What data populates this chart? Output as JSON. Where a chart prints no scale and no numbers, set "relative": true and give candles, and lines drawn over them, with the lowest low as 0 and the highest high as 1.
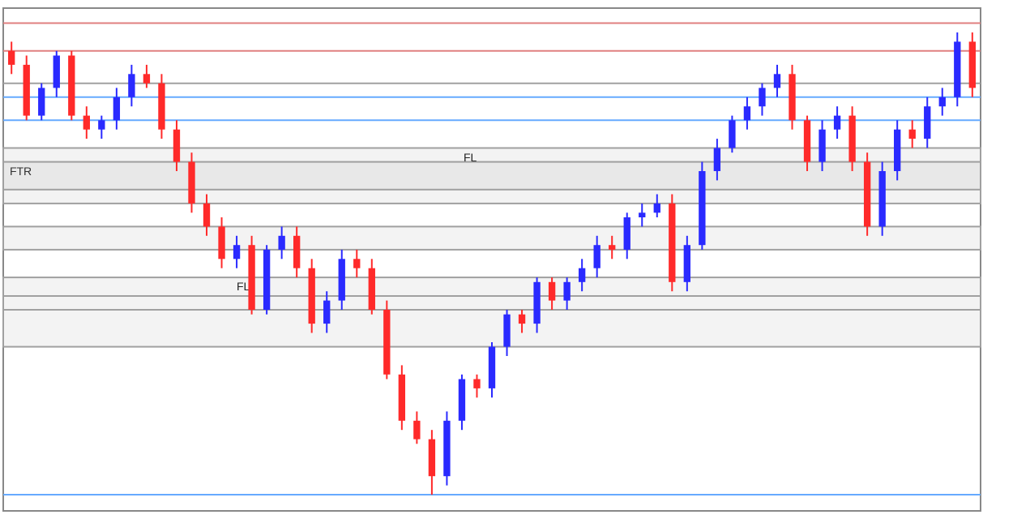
{
  "chart_data": {
    "type": "candlestick",
    "relative": true,
    "categories": [
      null,
      null,
      null,
      null,
      null,
      null,
      null,
      null,
      null,
      null,
      null,
      null,
      null,
      null,
      null,
      null,
      null,
      null,
      null,
      null,
      null,
      null,
      null,
      null,
      null,
      null,
      null,
      null,
      null,
      null,
      null,
      null,
      null,
      null,
      null,
      null,
      null,
      null,
      null,
      null,
      null,
      null,
      null,
      null,
      null,
      null,
      null,
      null,
      null,
      null,
      null,
      null,
      null,
      null,
      null,
      null,
      null,
      null,
      null,
      null,
      null,
      null,
      null,
      null,
      null
    ],
    "ohlc": [
      [
        0.96,
        0.98,
        0.91,
        0.93
      ],
      [
        0.93,
        0.95,
        0.81,
        0.82
      ],
      [
        0.82,
        0.89,
        0.81,
        0.88
      ],
      [
        0.88,
        0.96,
        0.86,
        0.95
      ],
      [
        0.95,
        0.96,
        0.81,
        0.82
      ],
      [
        0.82,
        0.84,
        0.77,
        0.79
      ],
      [
        0.79,
        0.82,
        0.77,
        0.81
      ],
      [
        0.81,
        0.88,
        0.79,
        0.86
      ],
      [
        0.86,
        0.93,
        0.84,
        0.91
      ],
      [
        0.91,
        0.93,
        0.88,
        0.89
      ],
      [
        0.89,
        0.91,
        0.77,
        0.79
      ],
      [
        0.79,
        0.81,
        0.7,
        0.72
      ],
      [
        0.72,
        0.74,
        0.61,
        0.63
      ],
      [
        0.63,
        0.65,
        0.56,
        0.58
      ],
      [
        0.58,
        0.6,
        0.49,
        0.51
      ],
      [
        0.51,
        0.56,
        0.49,
        0.54
      ],
      [
        0.54,
        0.56,
        0.39,
        0.4
      ],
      [
        0.4,
        0.54,
        0.39,
        0.53
      ],
      [
        0.53,
        0.58,
        0.51,
        0.56
      ],
      [
        0.56,
        0.58,
        0.47,
        0.49
      ],
      [
        0.49,
        0.51,
        0.35,
        0.37
      ],
      [
        0.37,
        0.44,
        0.35,
        0.42
      ],
      [
        0.42,
        0.53,
        0.4,
        0.51
      ],
      [
        0.51,
        0.53,
        0.47,
        0.49
      ],
      [
        0.49,
        0.51,
        0.39,
        0.4
      ],
      [
        0.4,
        0.42,
        0.25,
        0.26
      ],
      [
        0.26,
        0.28,
        0.14,
        0.16
      ],
      [
        0.16,
        0.18,
        0.11,
        0.12
      ],
      [
        0.12,
        0.14,
        0,
        0.04
      ],
      [
        0.04,
        0.18,
        0.02,
        0.16
      ],
      [
        0.16,
        0.26,
        0.14,
        0.25
      ],
      [
        0.25,
        0.26,
        0.21,
        0.23
      ],
      [
        0.23,
        0.33,
        0.21,
        0.32
      ],
      [
        0.32,
        0.4,
        0.3,
        0.39
      ],
      [
        0.39,
        0.4,
        0.35,
        0.37
      ],
      [
        0.37,
        0.47,
        0.35,
        0.46
      ],
      [
        0.46,
        0.47,
        0.4,
        0.42
      ],
      [
        0.42,
        0.47,
        0.4,
        0.46
      ],
      [
        0.46,
        0.51,
        0.44,
        0.49
      ],
      [
        0.49,
        0.56,
        0.47,
        0.54
      ],
      [
        0.54,
        0.56,
        0.51,
        0.53
      ],
      [
        0.53,
        0.61,
        0.51,
        0.6
      ],
      [
        0.6,
        0.63,
        0.58,
        0.61
      ],
      [
        0.61,
        0.65,
        0.6,
        0.63
      ],
      [
        0.63,
        0.65,
        0.44,
        0.46
      ],
      [
        0.46,
        0.56,
        0.44,
        0.54
      ],
      [
        0.54,
        0.72,
        0.53,
        0.7
      ],
      [
        0.7,
        0.77,
        0.68,
        0.75
      ],
      [
        0.75,
        0.82,
        0.74,
        0.81
      ],
      [
        0.81,
        0.86,
        0.79,
        0.84
      ],
      [
        0.84,
        0.89,
        0.82,
        0.88
      ],
      [
        0.88,
        0.93,
        0.86,
        0.91
      ],
      [
        0.91,
        0.93,
        0.79,
        0.81
      ],
      [
        0.81,
        0.82,
        0.7,
        0.72
      ],
      [
        0.72,
        0.81,
        0.7,
        0.79
      ],
      [
        0.79,
        0.84,
        0.77,
        0.82
      ],
      [
        0.82,
        0.84,
        0.7,
        0.72
      ],
      [
        0.72,
        0.74,
        0.56,
        0.58
      ],
      [
        0.58,
        0.72,
        0.56,
        0.7
      ],
      [
        0.7,
        0.81,
        0.68,
        0.79
      ],
      [
        0.79,
        0.81,
        0.75,
        0.77
      ],
      [
        0.77,
        0.86,
        0.75,
        0.84
      ],
      [
        0.84,
        0.88,
        0.82,
        0.86
      ],
      [
        0.86,
        1,
        0.84,
        0.98
      ],
      [
        0.98,
        1,
        0.86,
        0.88
      ]
    ],
    "ref_lines": [
      {
        "axis": "y",
        "value": 1.02,
        "color": "#e08080"
      },
      {
        "axis": "y",
        "value": 0.96,
        "color": "#e08080"
      },
      {
        "axis": "y",
        "value": 0.89,
        "color": "#a0a0a0"
      },
      {
        "axis": "y",
        "value": 0.86,
        "color": "#66aaff"
      },
      {
        "axis": "y",
        "value": 0.81,
        "color": "#66aaff"
      },
      {
        "axis": "y",
        "value": 0.43,
        "color": "#a0a0a0"
      },
      {
        "axis": "y",
        "value": 0.4,
        "color": "#a0a0a0"
      },
      {
        "axis": "y",
        "value": 0,
        "color": "#66aaff"
      }
    ],
    "bands": [
      {
        "axis": "y",
        "from": 0.63,
        "to": 0.72,
        "label": "FTR",
        "color": "#a0a0a0"
      },
      {
        "axis": "y",
        "from": 0.32,
        "to": 0.47,
        "label": "FL",
        "color": "#a0a0a0"
      },
      {
        "axis": "y",
        "from": 0.66,
        "to": 0.75,
        "label": "FL",
        "color": "#a0a0a0"
      },
      {
        "axis": "y",
        "from": 0.53,
        "to": 0.58,
        "color": "#a0a0a0"
      }
    ]
  }
}
